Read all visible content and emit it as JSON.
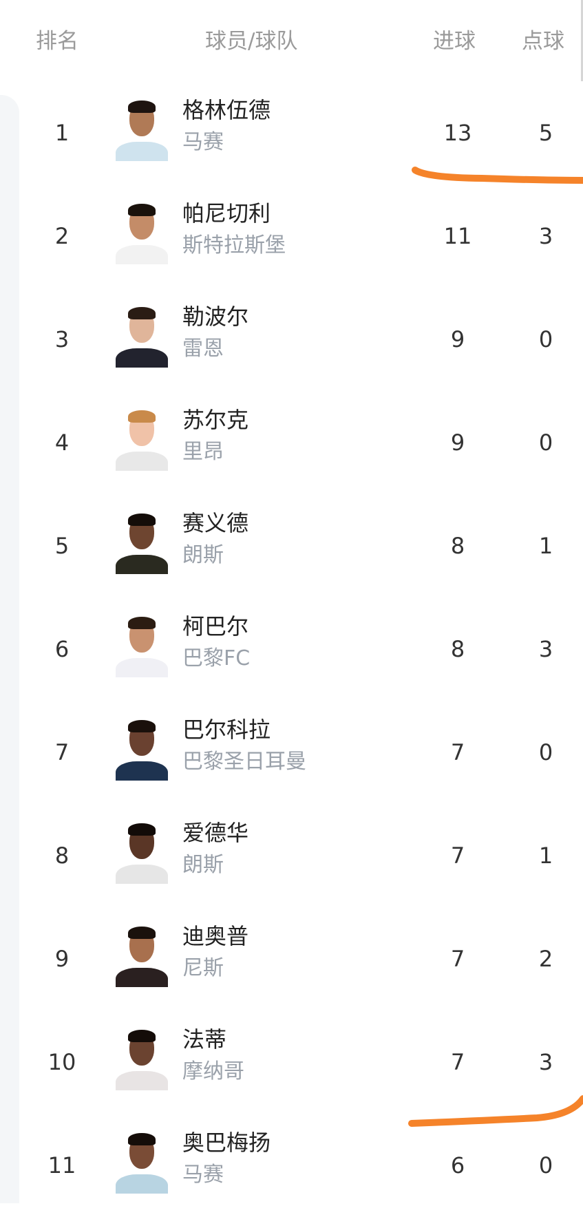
{
  "header": {
    "rank": "排名",
    "player_team": "球员/球队",
    "goals": "进球",
    "penalties": "点球"
  },
  "annotation_color": "#f5832a",
  "rows": [
    {
      "rank": "1",
      "name": "格林伍德",
      "team": "马赛",
      "goals": "13",
      "penalties": "5",
      "skin": "#b07a56",
      "hair": "#1e1410",
      "kit": "#cfe3ee"
    },
    {
      "rank": "2",
      "name": "帕尼切利",
      "team": "斯特拉斯堡",
      "goals": "11",
      "penalties": "3",
      "skin": "#c48c68",
      "hair": "#1a120c",
      "kit": "#f2f2f2"
    },
    {
      "rank": "3",
      "name": "勒波尔",
      "team": "雷恩",
      "goals": "9",
      "penalties": "0",
      "skin": "#e0b59a",
      "hair": "#2a1c14",
      "kit": "#22232e"
    },
    {
      "rank": "4",
      "name": "苏尔克",
      "team": "里昂",
      "goals": "9",
      "penalties": "0",
      "skin": "#f0c2a8",
      "hair": "#c98a4a",
      "kit": "#e8e8e8"
    },
    {
      "rank": "5",
      "name": "赛义德",
      "team": "朗斯",
      "goals": "8",
      "penalties": "1",
      "skin": "#6e4530",
      "hair": "#140d09",
      "kit": "#2a2a20"
    },
    {
      "rank": "6",
      "name": "柯巴尔",
      "team": "巴黎FC",
      "goals": "8",
      "penalties": "3",
      "skin": "#c99270",
      "hair": "#2b1c12",
      "kit": "#f0f0f5"
    },
    {
      "rank": "7",
      "name": "巴尔科拉",
      "team": "巴黎圣日耳曼",
      "goals": "7",
      "penalties": "0",
      "skin": "#6a4130",
      "hair": "#1a100b",
      "kit": "#1e3350"
    },
    {
      "rank": "8",
      "name": "爱德华",
      "team": "朗斯",
      "goals": "7",
      "penalties": "1",
      "skin": "#5a3626",
      "hair": "#120b08",
      "kit": "#e6e6e6"
    },
    {
      "rank": "9",
      "name": "迪奥普",
      "team": "尼斯",
      "goals": "7",
      "penalties": "2",
      "skin": "#a8704e",
      "hair": "#1a110c",
      "kit": "#2a2020"
    },
    {
      "rank": "10",
      "name": "法蒂",
      "team": "摩纳哥",
      "goals": "7",
      "penalties": "3",
      "skin": "#6b4330",
      "hair": "#140c08",
      "kit": "#e8e4e4"
    },
    {
      "rank": "11",
      "name": "奥巴梅扬",
      "team": "马赛",
      "goals": "6",
      "penalties": "0",
      "skin": "#7a4c36",
      "hair": "#150d09",
      "kit": "#b8d4e2"
    }
  ]
}
